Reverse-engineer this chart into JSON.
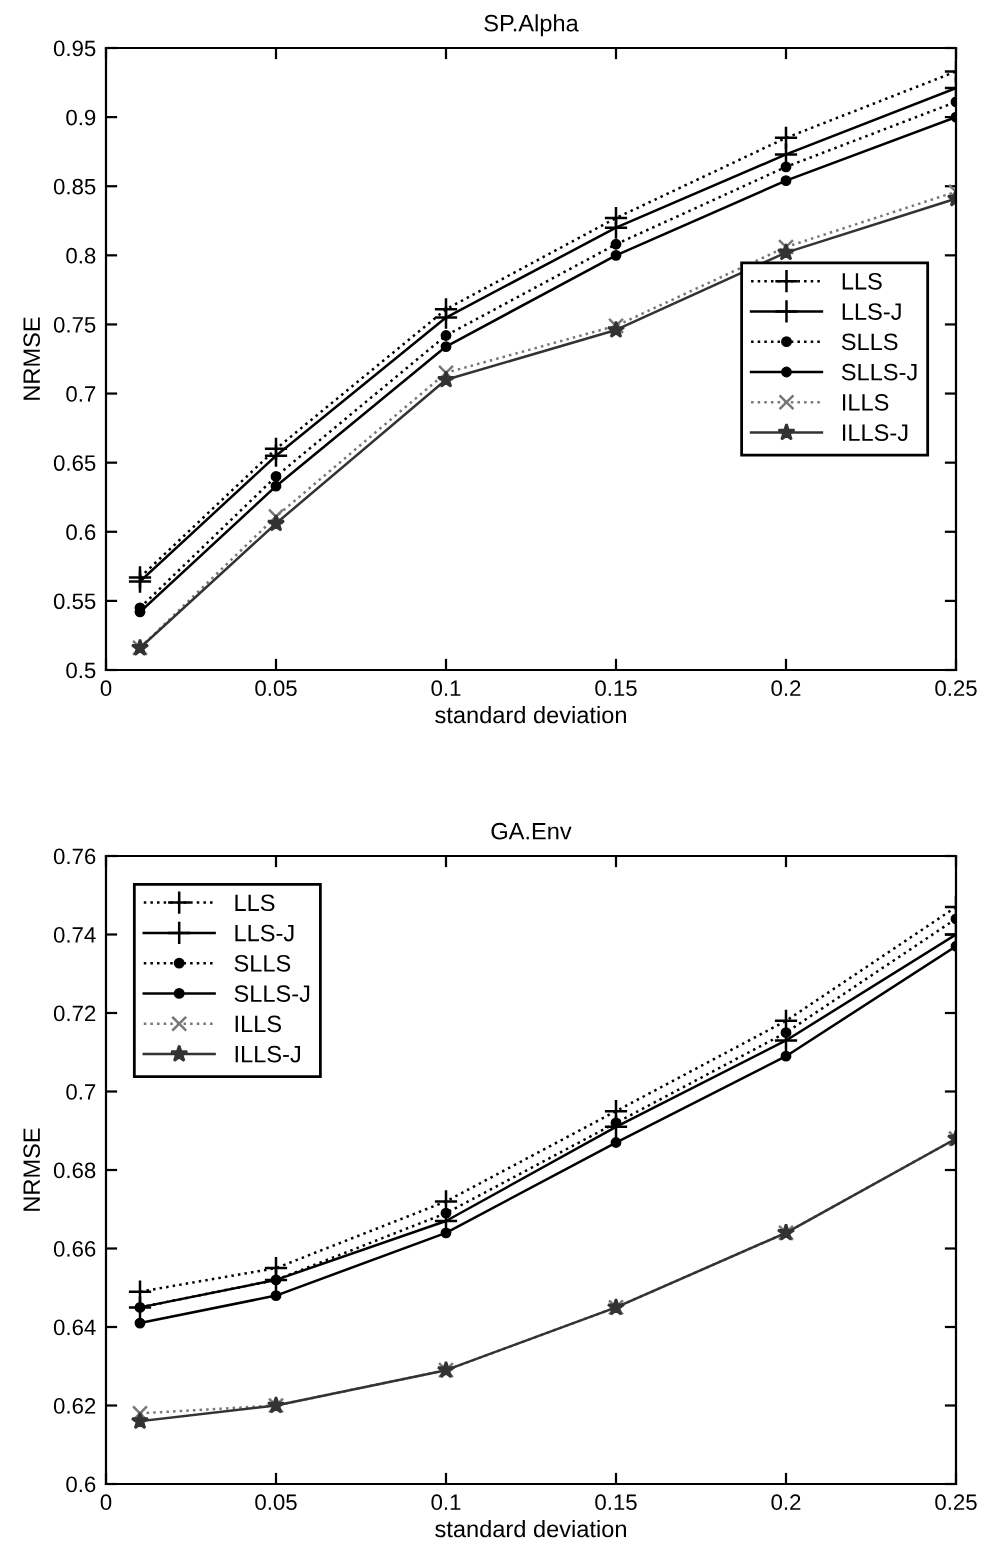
{
  "chart_data": [
    {
      "type": "line",
      "title": "SP.Alpha",
      "xlabel": "standard deviation",
      "ylabel": "NRMSE",
      "x": [
        0.01,
        0.05,
        0.1,
        0.15,
        0.2,
        0.25
      ],
      "xlim": [
        0,
        0.25
      ],
      "xticks": [
        0,
        0.05,
        0.1,
        0.15,
        0.2,
        0.25
      ],
      "ylim": [
        0.5,
        0.95
      ],
      "yticks": [
        0.5,
        0.55,
        0.6,
        0.65,
        0.7,
        0.75,
        0.8,
        0.85,
        0.9,
        0.95
      ],
      "grid": false,
      "legend": "center right",
      "series": [
        {
          "name": "LLS",
          "color": "#000000",
          "marker": "cross",
          "line_style": "dotted",
          "values": [
            0.567,
            0.66,
            0.761,
            0.827,
            0.885,
            0.933
          ]
        },
        {
          "name": "LLS-J",
          "color": "#000000",
          "marker": "cross",
          "line_style": "solid",
          "values": [
            0.564,
            0.655,
            0.755,
            0.82,
            0.873,
            0.921
          ]
        },
        {
          "name": "SLLS",
          "color": "#000000",
          "marker": "circle",
          "line_style": "dotted",
          "values": [
            0.545,
            0.64,
            0.742,
            0.808,
            0.864,
            0.911
          ]
        },
        {
          "name": "SLLS-J",
          "color": "#000000",
          "marker": "circle",
          "line_style": "solid",
          "values": [
            0.542,
            0.633,
            0.734,
            0.8,
            0.854,
            0.9
          ]
        },
        {
          "name": "ILLS",
          "color": "#777777",
          "marker": "x",
          "line_style": "dotted",
          "values": [
            0.516,
            0.611,
            0.715,
            0.749,
            0.806,
            0.846
          ]
        },
        {
          "name": "ILLS-J",
          "color": "#333333",
          "marker": "star",
          "line_style": "solid",
          "values": [
            0.516,
            0.606,
            0.71,
            0.746,
            0.802,
            0.841
          ]
        }
      ]
    },
    {
      "type": "line",
      "title": "GA.Env",
      "xlabel": "standard deviation",
      "ylabel": "NRMSE",
      "x": [
        0.01,
        0.05,
        0.1,
        0.15,
        0.2,
        0.25
      ],
      "xlim": [
        0,
        0.25
      ],
      "xticks": [
        0,
        0.05,
        0.1,
        0.15,
        0.2,
        0.25
      ],
      "ylim": [
        0.6,
        0.76
      ],
      "yticks": [
        0.6,
        0.62,
        0.64,
        0.66,
        0.68,
        0.7,
        0.72,
        0.74,
        0.76
      ],
      "grid": false,
      "legend": "upper left",
      "series": [
        {
          "name": "LLS",
          "color": "#000000",
          "marker": "cross",
          "line_style": "dotted",
          "values": [
            0.649,
            0.655,
            0.672,
            0.695,
            0.718,
            0.747
          ]
        },
        {
          "name": "LLS-J",
          "color": "#000000",
          "marker": "cross",
          "line_style": "solid",
          "values": [
            0.645,
            0.652,
            0.667,
            0.691,
            0.713,
            0.74
          ]
        },
        {
          "name": "SLLS",
          "color": "#000000",
          "marker": "circle",
          "line_style": "dotted",
          "values": [
            0.645,
            0.652,
            0.669,
            0.692,
            0.715,
            0.744
          ]
        },
        {
          "name": "SLLS-J",
          "color": "#000000",
          "marker": "circle",
          "line_style": "solid",
          "values": [
            0.641,
            0.648,
            0.664,
            0.687,
            0.709,
            0.737
          ]
        },
        {
          "name": "ILLS",
          "color": "#777777",
          "marker": "x",
          "line_style": "dotted",
          "values": [
            0.618,
            0.62,
            0.629,
            0.645,
            0.664,
            0.688
          ]
        },
        {
          "name": "ILLS-J",
          "color": "#333333",
          "marker": "star",
          "line_style": "solid",
          "values": [
            0.616,
            0.62,
            0.629,
            0.645,
            0.664,
            0.688
          ]
        }
      ]
    }
  ]
}
